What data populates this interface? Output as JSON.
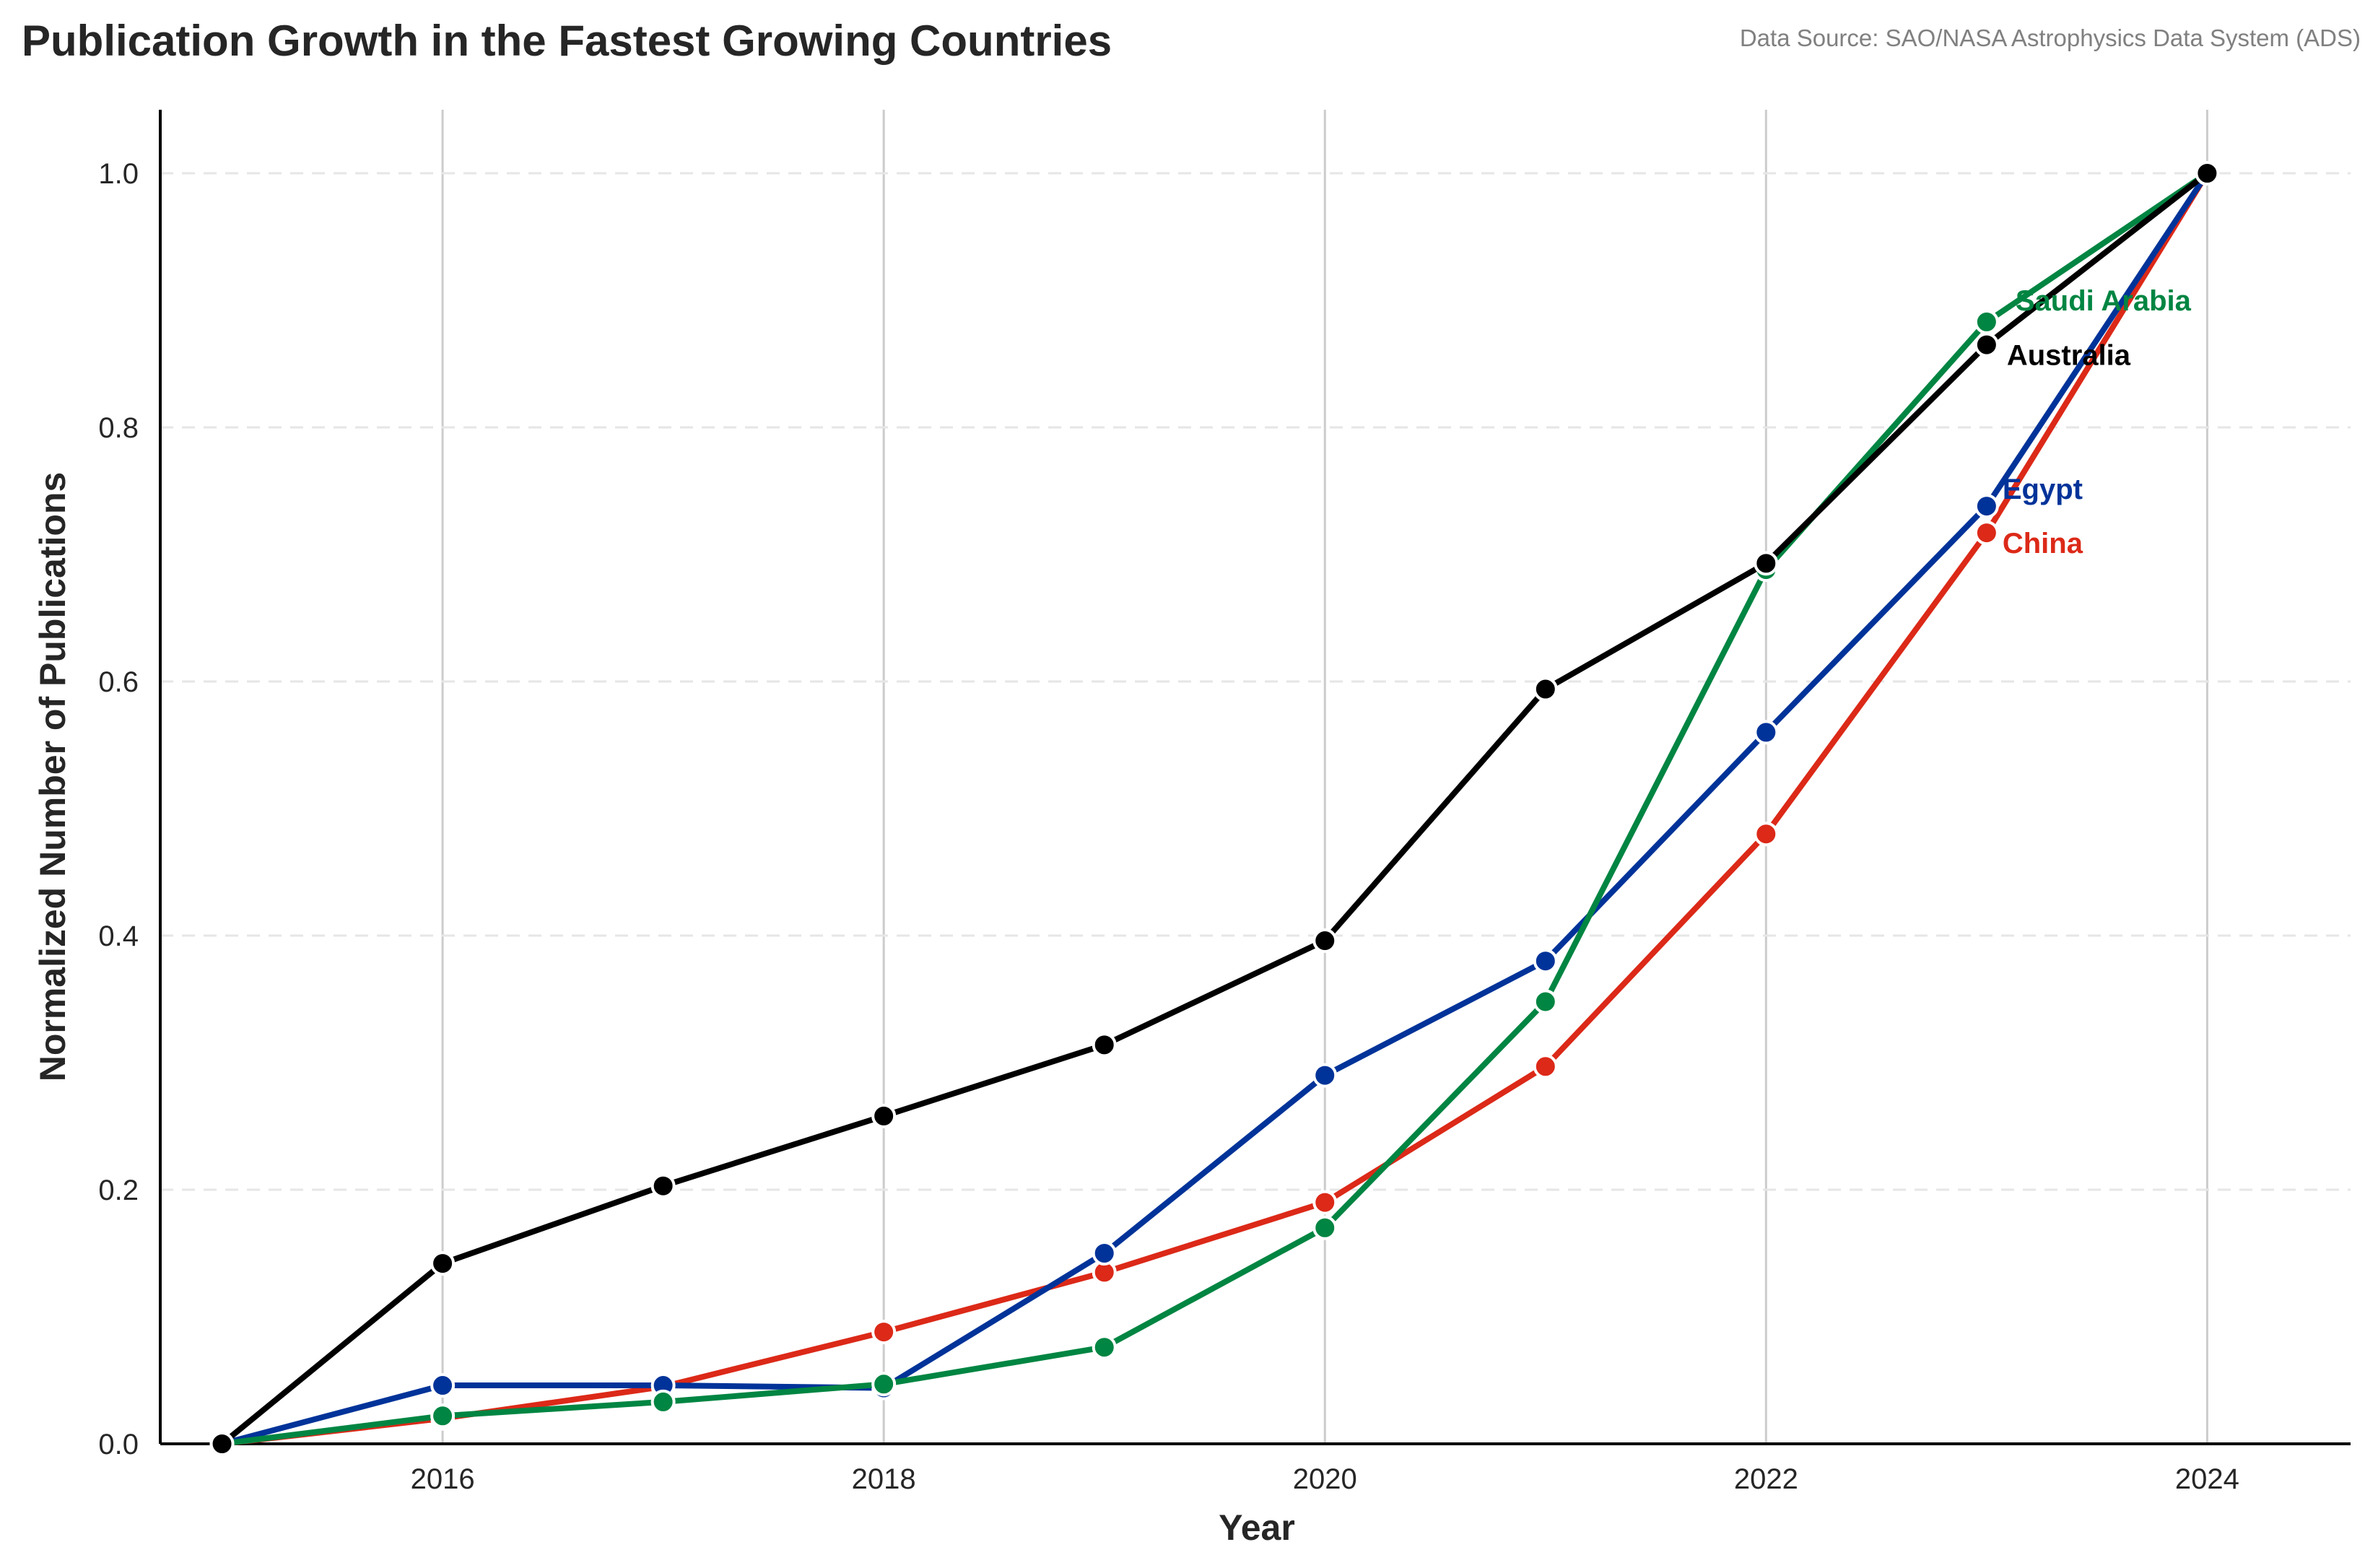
{
  "header": {
    "title": "Publication Growth in the Fastest Growing Countries",
    "source": "Data Source: SAO/NASA Astrophysics Data System (ADS)"
  },
  "chart_data": {
    "type": "line",
    "title": "Publication Growth in the Fastest Growing Countries",
    "xlabel": "Year",
    "ylabel": "Normalized Number of Publications",
    "x": [
      2015,
      2016,
      2017,
      2018,
      2019,
      2020,
      2021,
      2022,
      2023,
      2024
    ],
    "xlim": [
      2014.72,
      2024.65
    ],
    "ylim": [
      0,
      1.05
    ],
    "xticks": [
      2016,
      2018,
      2020,
      2022,
      2024
    ],
    "yticks": [
      0.0,
      0.2,
      0.4,
      0.6,
      0.8,
      1.0
    ],
    "xtick_labels": [
      "2016",
      "2018",
      "2020",
      "2022",
      "2024"
    ],
    "ytick_labels": [
      "0.0",
      "0.2",
      "0.4",
      "0.6",
      "0.8",
      "1.0"
    ],
    "grid": {
      "x": "solid vertical lines at x ticks",
      "y": "dashed horizontal lines at y ticks"
    },
    "legend": "inline labels at end of lines",
    "series": [
      {
        "name": "China",
        "color": "#dc2918",
        "values": [
          0.0,
          0.02,
          0.045,
          0.088,
          0.135,
          0.19,
          0.297,
          0.48,
          0.717,
          1.0
        ]
      },
      {
        "name": "Egypt",
        "color": "#003399",
        "values": [
          0.0,
          0.046,
          0.046,
          0.044,
          0.15,
          0.29,
          0.38,
          0.56,
          0.738,
          1.0
        ]
      },
      {
        "name": "Saudi Arabia",
        "color": "#008542",
        "values": [
          0.0,
          0.022,
          0.033,
          0.047,
          0.076,
          0.17,
          0.348,
          0.688,
          0.883,
          1.0
        ]
      },
      {
        "name": "Australia",
        "color": "#000000",
        "values": [
          0.0,
          0.142,
          0.203,
          0.258,
          0.314,
          0.396,
          0.594,
          0.693,
          0.865,
          1.0
        ]
      }
    ]
  }
}
